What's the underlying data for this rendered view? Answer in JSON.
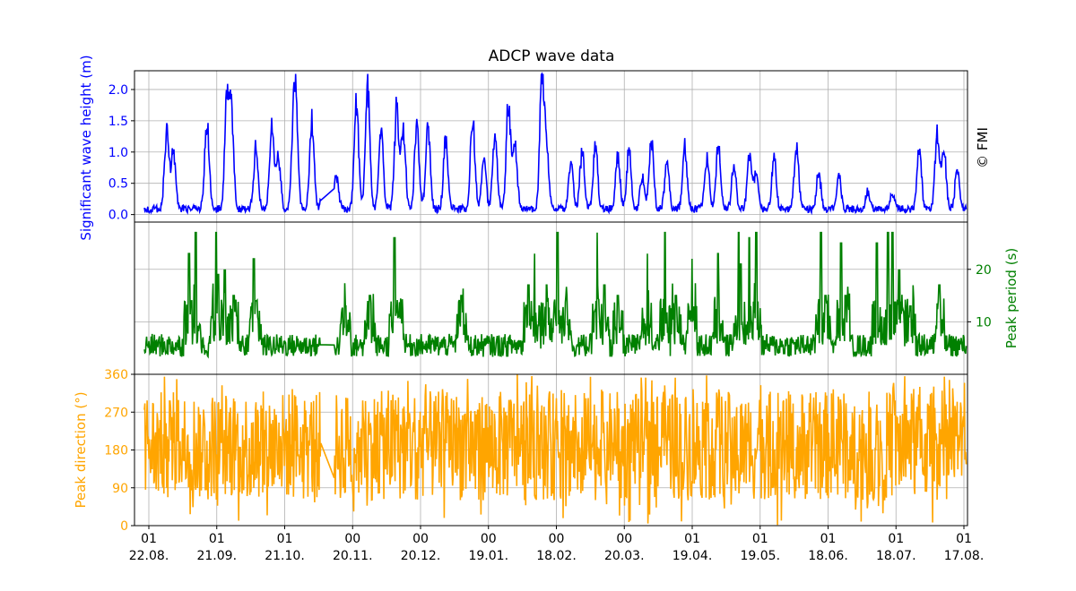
{
  "chart_data": {
    "type": "line",
    "title": "ADCP wave data",
    "watermark": "© FMI",
    "x_ticks": [
      {
        "top": "01",
        "bottom": "22.08."
      },
      {
        "top": "01",
        "bottom": "21.09."
      },
      {
        "top": "01",
        "bottom": "21.10."
      },
      {
        "top": "00",
        "bottom": "20.11."
      },
      {
        "top": "00",
        "bottom": "20.12."
      },
      {
        "top": "00",
        "bottom": "19.01."
      },
      {
        "top": "00",
        "bottom": "18.02."
      },
      {
        "top": "00",
        "bottom": "20.03."
      },
      {
        "top": "01",
        "bottom": "19.04."
      },
      {
        "top": "01",
        "bottom": "19.05."
      },
      {
        "top": "01",
        "bottom": "18.06."
      },
      {
        "top": "01",
        "bottom": "18.07."
      },
      {
        "top": "01",
        "bottom": "17.08."
      }
    ],
    "x_range_days": [
      0,
      365
    ],
    "grid": true,
    "panels": [
      {
        "name": "Significant wave height (m)",
        "ylabel": "Significant wave height (m)",
        "ylabel_side": "left",
        "color": "#0000ff",
        "ylim": [
          -0.12,
          2.3
        ],
        "yticks": [
          "0.0",
          "0.5",
          "1.0",
          "1.5",
          "2.0"
        ],
        "ytick_values": [
          0,
          0.5,
          1.0,
          1.5,
          2.0
        ],
        "baseline": 0.03,
        "noise": 0.12,
        "peaks": [
          [
            8,
            1.42
          ],
          [
            11,
            1.05
          ],
          [
            26,
            1.62
          ],
          [
            35,
            1.95
          ],
          [
            37,
            1.58
          ],
          [
            48,
            1.1
          ],
          [
            55,
            1.45
          ],
          [
            58,
            1.0
          ],
          [
            65,
            1.58
          ],
          [
            66,
            1.25
          ],
          [
            73,
            1.65
          ],
          [
            79,
            1.55
          ],
          [
            84,
            0.6
          ],
          [
            93,
            1.9
          ],
          [
            98,
            2.18
          ],
          [
            104,
            1.55
          ],
          [
            111,
            1.9
          ],
          [
            114,
            1.45
          ],
          [
            120,
            1.55
          ],
          [
            125,
            1.5
          ],
          [
            133,
            1.28
          ],
          [
            145,
            1.65
          ],
          [
            150,
            1.0
          ],
          [
            155,
            1.3
          ],
          [
            161,
            1.92
          ],
          [
            164,
            1.1
          ],
          [
            176,
            2.15
          ],
          [
            178,
            1.25
          ],
          [
            189,
            0.85
          ],
          [
            194,
            1.05
          ],
          [
            200,
            1.15
          ],
          [
            210,
            0.95
          ],
          [
            215,
            1.1
          ],
          [
            221,
            0.55
          ],
          [
            225,
            1.25
          ],
          [
            232,
            0.9
          ],
          [
            240,
            1.1
          ],
          [
            250,
            0.95
          ],
          [
            255,
            1.15
          ],
          [
            262,
            0.8
          ],
          [
            269,
            1.02
          ],
          [
            272,
            0.65
          ],
          [
            280,
            0.9
          ],
          [
            290,
            1.15
          ],
          [
            300,
            0.65
          ],
          [
            309,
            0.6
          ],
          [
            322,
            0.3
          ],
          [
            333,
            0.25
          ],
          [
            345,
            1.1
          ],
          [
            353,
            1.32
          ],
          [
            356,
            1.05
          ],
          [
            362,
            0.7
          ]
        ],
        "gaps": [
          [
            77,
            83
          ]
        ]
      },
      {
        "name": "Peak period (s)",
        "ylabel": "Peak period (s)",
        "ylabel_side": "right",
        "color": "#008000",
        "ylim": [
          0,
          29
        ],
        "yticks": [
          "10",
          "20"
        ],
        "ytick_values": [
          10,
          20
        ],
        "baseline": 5.5,
        "noise": 2.2,
        "spikes": [
          [
            18,
            23
          ],
          [
            19,
            14
          ],
          [
            21,
            27
          ],
          [
            30,
            27
          ],
          [
            31,
            19
          ],
          [
            34,
            20
          ],
          [
            38,
            15
          ],
          [
            47,
            22
          ],
          [
            48,
            14
          ],
          [
            80,
            12
          ],
          [
            88,
            13
          ],
          [
            99,
            15
          ],
          [
            110,
            26
          ],
          [
            112,
            11
          ],
          [
            140,
            15
          ],
          [
            170,
            17
          ],
          [
            173,
            23
          ],
          [
            178,
            17
          ],
          [
            183,
            27
          ],
          [
            187,
            15
          ],
          [
            201,
            27
          ],
          [
            204,
            17
          ],
          [
            210,
            15
          ],
          [
            223,
            23
          ],
          [
            231,
            27
          ],
          [
            236,
            15
          ],
          [
            243,
            22
          ],
          [
            255,
            23
          ],
          [
            264,
            27
          ],
          [
            265,
            21
          ],
          [
            269,
            26
          ],
          [
            272,
            27
          ],
          [
            301,
            27
          ],
          [
            303,
            15
          ],
          [
            310,
            25
          ],
          [
            312,
            15
          ],
          [
            326,
            25
          ],
          [
            331,
            27
          ],
          [
            333,
            27
          ],
          [
            336,
            20
          ],
          [
            341,
            13
          ],
          [
            354,
            17
          ]
        ],
        "gaps": [
          [
            77,
            83
          ]
        ]
      },
      {
        "name": "Peak direction (°)",
        "ylabel": "Peak direction (°)",
        "ylabel_side": "left",
        "color": "#ffa500",
        "ylim": [
          0,
          360
        ],
        "yticks": [
          "0",
          "90",
          "180",
          "270",
          "360"
        ],
        "ytick_values": [
          0,
          90,
          180,
          270,
          360
        ],
        "baseline": 190,
        "noise": 130,
        "gaps": [
          [
            77,
            83
          ]
        ]
      }
    ]
  }
}
